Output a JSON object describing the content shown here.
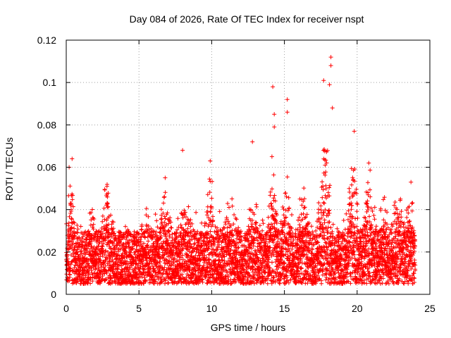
{
  "chart_data": {
    "type": "scatter",
    "title": "Day 084 of 2026, Rate Of TEC Index for receiver nspt",
    "xlabel": "GPS time / hours",
    "ylabel": "ROTI / TECUs",
    "xlim": [
      0,
      25
    ],
    "ylim": [
      0,
      0.12
    ],
    "x_ticks": [
      0,
      5,
      10,
      15,
      20,
      25
    ],
    "y_ticks": [
      0,
      0.02,
      0.04,
      0.06,
      0.08,
      0.1,
      0.12
    ],
    "x_tick_labels": [
      "0",
      "5",
      "10",
      "15",
      "20",
      "25"
    ],
    "y_tick_labels": [
      "0",
      "0.02",
      "0.04",
      "0.06",
      "0.08",
      "0.1",
      "0.12"
    ],
    "grid": true,
    "marker": "+",
    "marker_color": "#ff0000",
    "time_range_hours": [
      0,
      24
    ],
    "baseline_roti_range": [
      0.005,
      0.03
    ],
    "notable_points": [
      {
        "x": 0.2,
        "y": 0.06
      },
      {
        "x": 0.4,
        "y": 0.064
      },
      {
        "x": 2.8,
        "y": 0.051
      },
      {
        "x": 6.8,
        "y": 0.055
      },
      {
        "x": 8.0,
        "y": 0.068
      },
      {
        "x": 9.9,
        "y": 0.063
      },
      {
        "x": 12.8,
        "y": 0.072
      },
      {
        "x": 14.2,
        "y": 0.098
      },
      {
        "x": 14.3,
        "y": 0.085
      },
      {
        "x": 14.3,
        "y": 0.079
      },
      {
        "x": 15.2,
        "y": 0.092
      },
      {
        "x": 15.2,
        "y": 0.086
      },
      {
        "x": 17.7,
        "y": 0.101
      },
      {
        "x": 18.2,
        "y": 0.112
      },
      {
        "x": 18.2,
        "y": 0.108
      },
      {
        "x": 18.1,
        "y": 0.099
      },
      {
        "x": 18.3,
        "y": 0.088
      },
      {
        "x": 19.8,
        "y": 0.077
      },
      {
        "x": 20.8,
        "y": 0.062
      },
      {
        "x": 23.7,
        "y": 0.053
      }
    ],
    "activity_bursts": [
      {
        "center": 0.3,
        "width": 0.35,
        "peak": 0.048
      },
      {
        "center": 1.8,
        "width": 0.3,
        "peak": 0.035
      },
      {
        "center": 2.8,
        "width": 0.35,
        "peak": 0.05
      },
      {
        "center": 5.5,
        "width": 0.4,
        "peak": 0.032
      },
      {
        "center": 6.8,
        "width": 0.4,
        "peak": 0.05
      },
      {
        "center": 8.2,
        "width": 0.45,
        "peak": 0.045
      },
      {
        "center": 9.9,
        "width": 0.4,
        "peak": 0.055
      },
      {
        "center": 11.3,
        "width": 0.5,
        "peak": 0.038
      },
      {
        "center": 12.8,
        "width": 0.45,
        "peak": 0.048
      },
      {
        "center": 14.2,
        "width": 0.35,
        "peak": 0.06
      },
      {
        "center": 15.1,
        "width": 0.35,
        "peak": 0.052
      },
      {
        "center": 16.3,
        "width": 0.45,
        "peak": 0.05
      },
      {
        "center": 17.8,
        "width": 0.5,
        "peak": 0.068
      },
      {
        "center": 19.7,
        "width": 0.45,
        "peak": 0.058
      },
      {
        "center": 20.8,
        "width": 0.4,
        "peak": 0.055
      },
      {
        "center": 21.8,
        "width": 0.4,
        "peak": 0.04
      },
      {
        "center": 22.8,
        "width": 0.5,
        "peak": 0.042
      },
      {
        "center": 23.6,
        "width": 0.3,
        "peak": 0.04
      }
    ]
  }
}
